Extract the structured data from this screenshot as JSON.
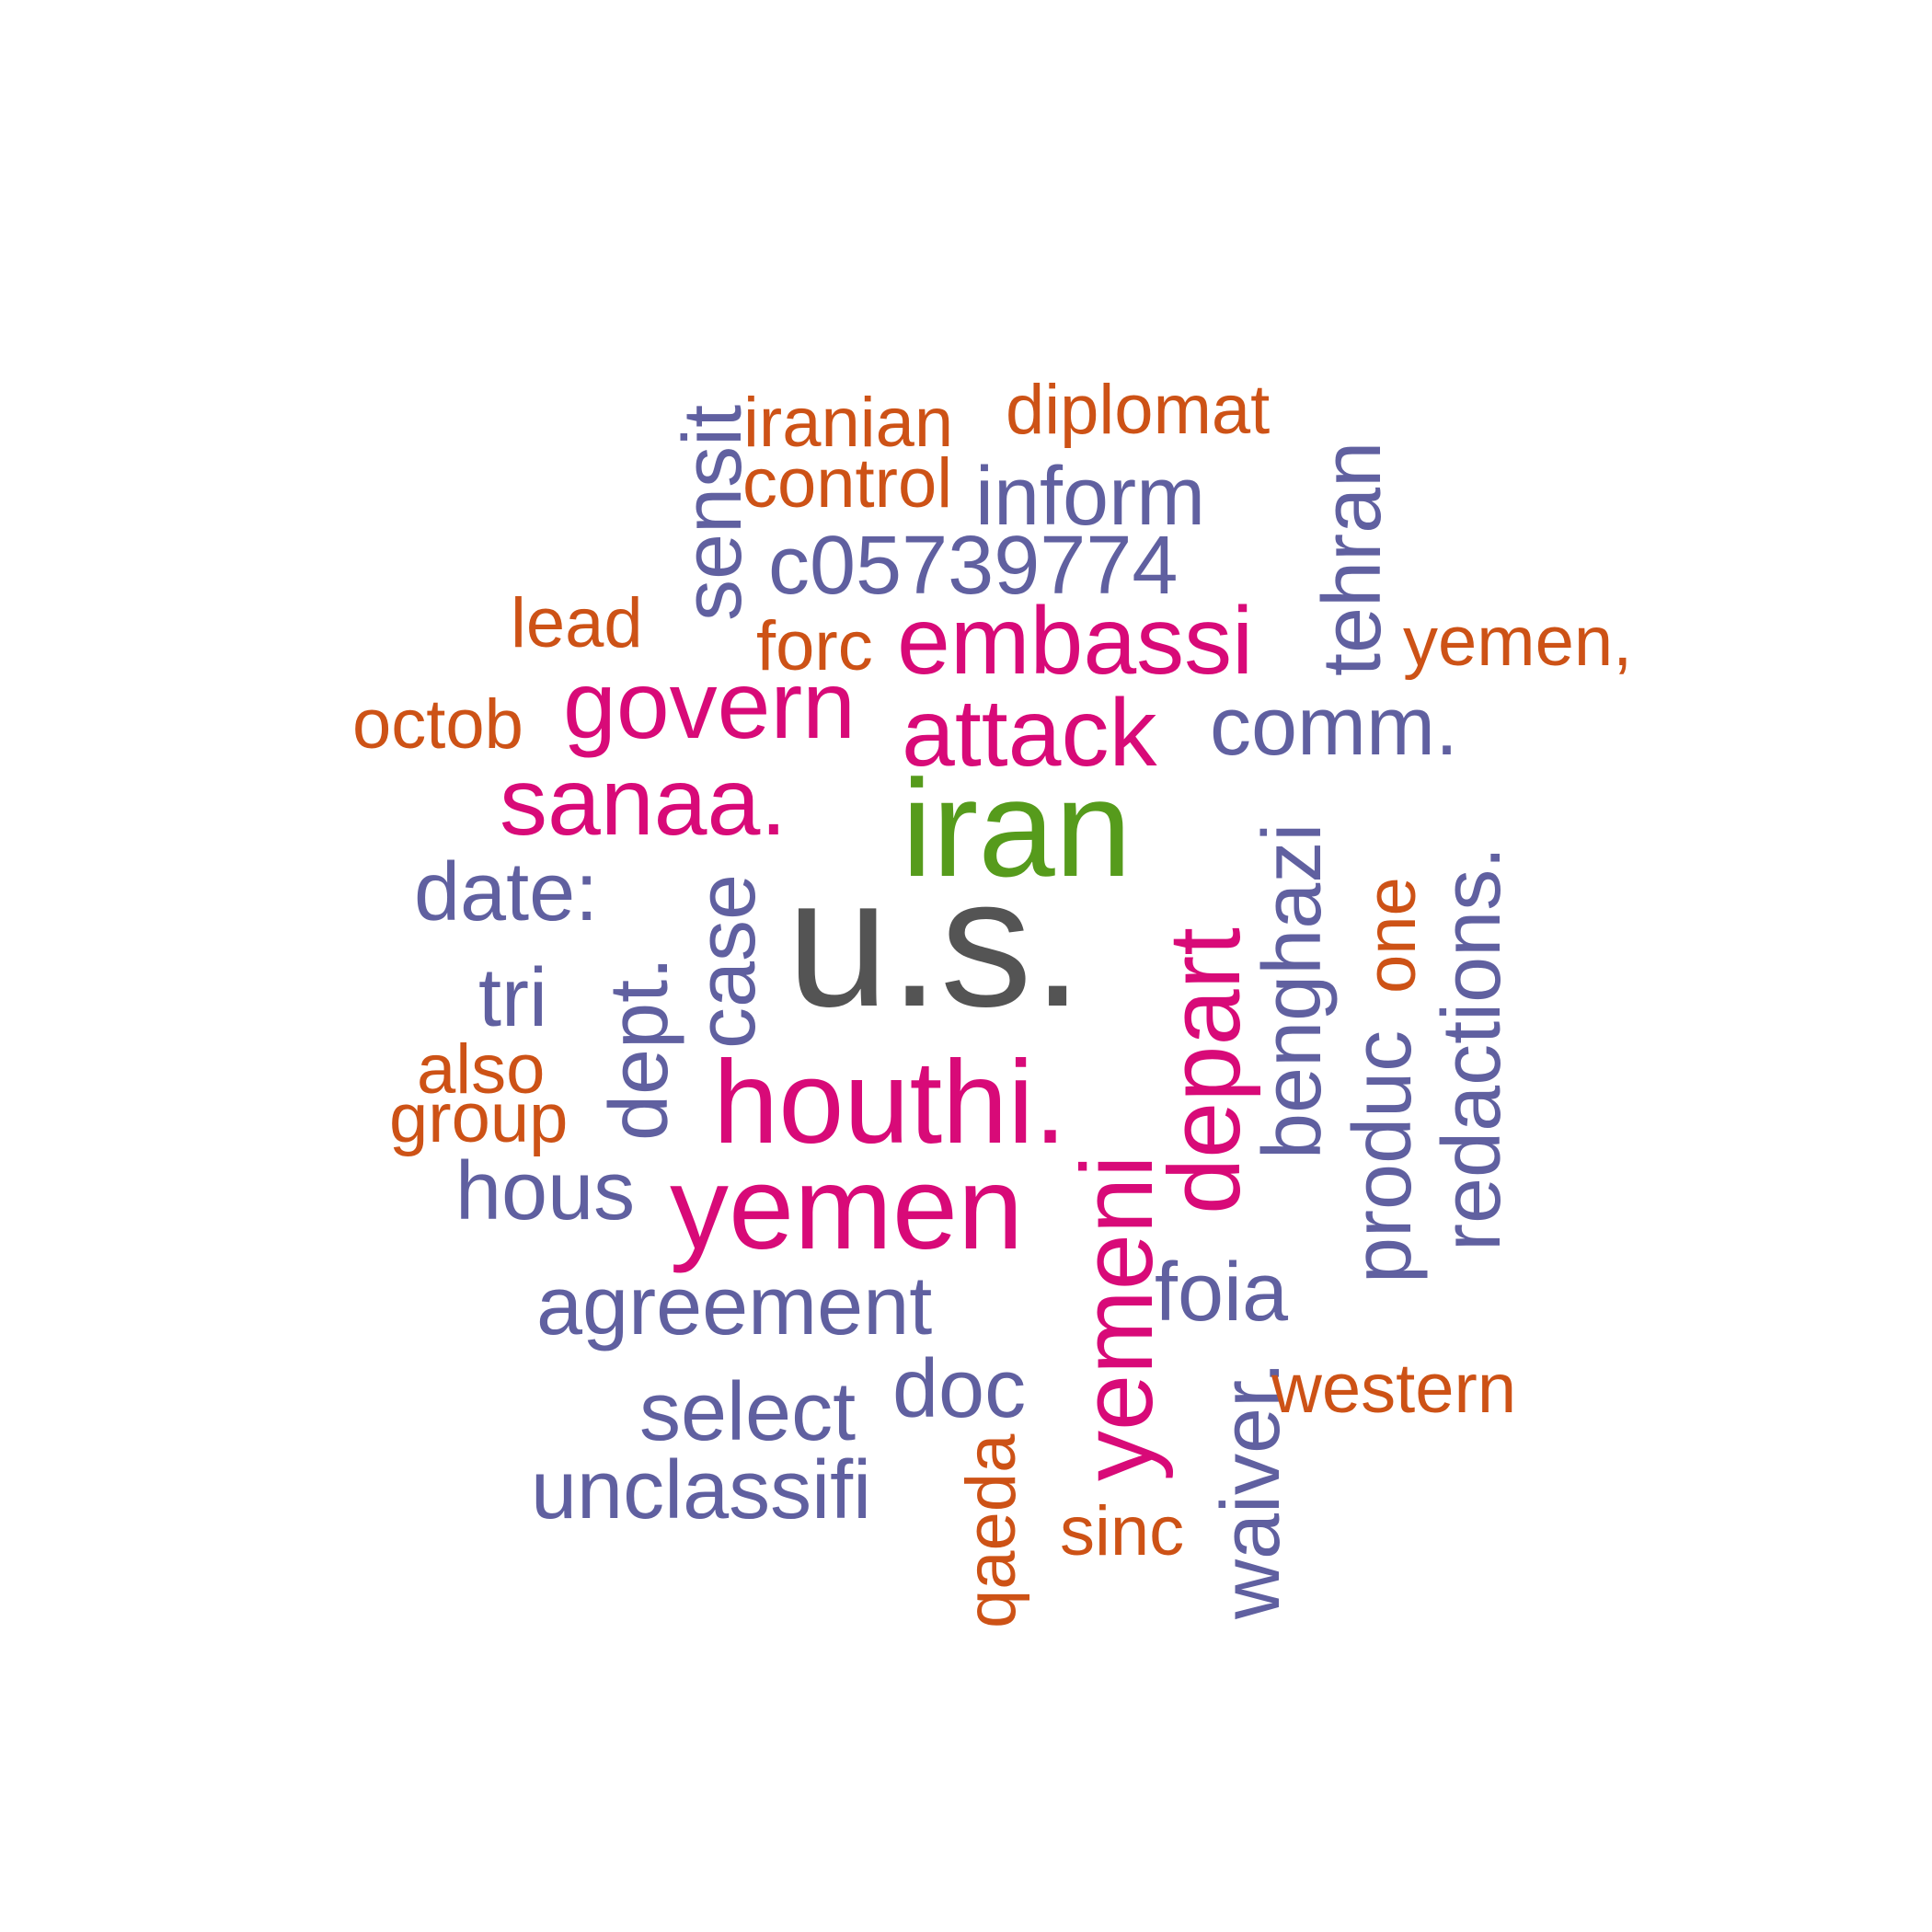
{
  "palette": {
    "gray": "#545454",
    "green": "#569b1c",
    "pink": "#d80a78",
    "purple": "#6060a0",
    "orange": "#cd5216",
    "background": "#ffffff"
  },
  "words": {
    "us": "u.s.",
    "iran": "iran",
    "houthi": "houthi.",
    "yemen": "yemen",
    "yemeni": "yemeni",
    "depart": "depart",
    "embassi": "embassi",
    "attack": "attack",
    "govern": "govern",
    "sanaa": "sanaa.",
    "c05739774": "c05739774",
    "inform": "inform",
    "comm": "comm.",
    "date": "date:",
    "tri": "tri",
    "hous": "hous",
    "agreement": "agreement",
    "select": "select",
    "doc": "doc",
    "unclassifi": "unclassifi",
    "foia": "foia",
    "sensit": "sensit",
    "tehran": "tehran",
    "benghazi": "benghazi",
    "redactions": "redactions.",
    "produc": "produc",
    "case": "case",
    "dept": "dept.",
    "waiver": "waiver.",
    "iranian": "iranian",
    "diplomat": "diplomat",
    "control": "control",
    "lead": "lead",
    "forc": "forc",
    "octob": "octob",
    "yemen_comma": "yemen,",
    "also": "also",
    "group": "group",
    "western": "western",
    "sinc": "sinc",
    "one": "one",
    "qaeda": "qaeda"
  }
}
